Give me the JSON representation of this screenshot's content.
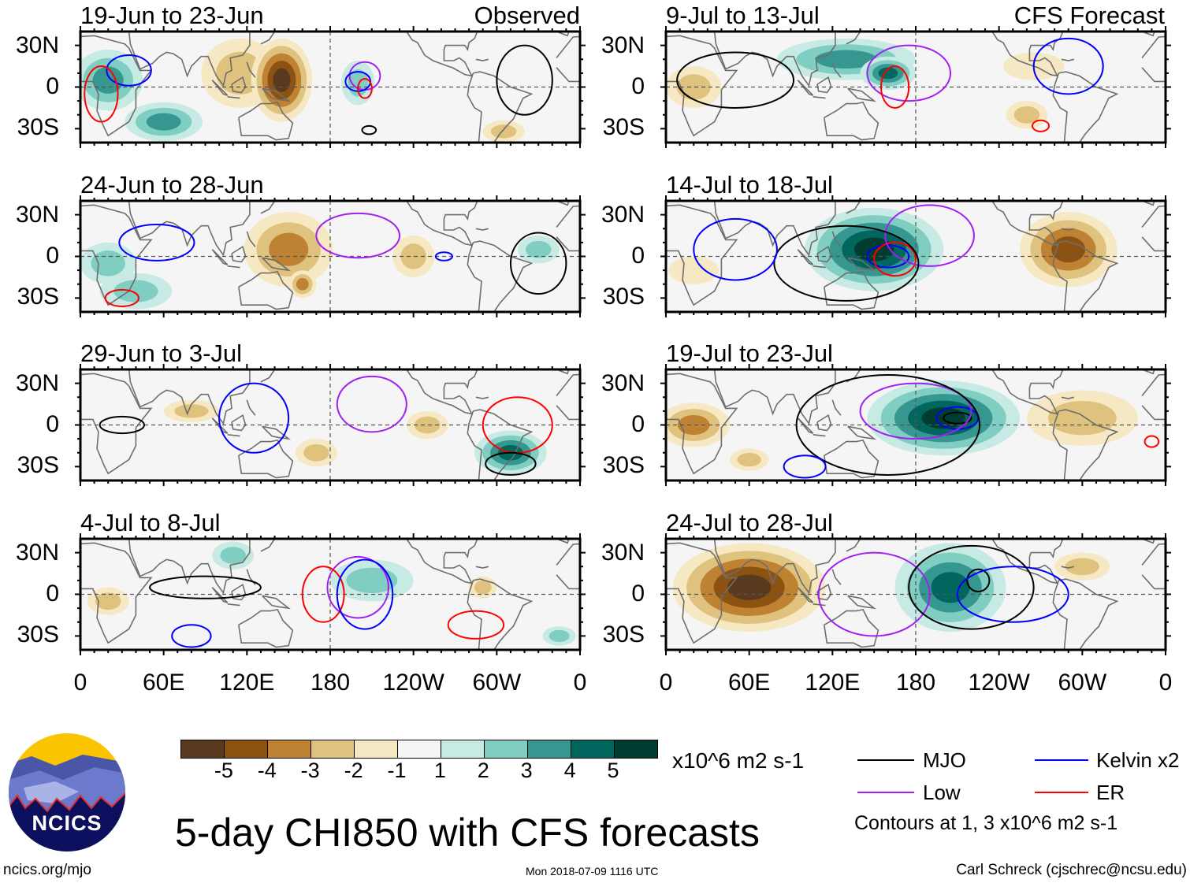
{
  "title": "5-day CHI850 with CFS forecasts",
  "units": "x10^6 m2 s-1",
  "observed_label": "Observed",
  "forecast_label": "CFS Forecast",
  "lat_labels": [
    "30N",
    "0",
    "30S"
  ],
  "lon_labels": [
    "0",
    "60E",
    "120E",
    "180",
    "120W",
    "60W",
    "0"
  ],
  "colorbar": {
    "labels": [
      "-5",
      "-4",
      "-3",
      "-2",
      "-1",
      "1",
      "2",
      "3",
      "4",
      "5"
    ],
    "colors": [
      "#5a3a1e",
      "#8c5212",
      "#bf8232",
      "#dfc27d",
      "#f6e8c3",
      "#f5f5f5",
      "#c7eae5",
      "#80cdc1",
      "#35978f",
      "#01665e",
      "#003c30"
    ]
  },
  "legend": {
    "items": [
      {
        "label": "MJO",
        "color": "#000000"
      },
      {
        "label": "Kelvin x2",
        "color": "#0000ff"
      },
      {
        "label": "Low",
        "color": "#a020f0"
      },
      {
        "label": "ER",
        "color": "#ff0000"
      }
    ],
    "note": "Contours at 1, 3 x10^6 m2 s-1"
  },
  "footer": {
    "site": "ncics.org/mjo",
    "timestamp": "Mon 2018-07-09 1116 UTC",
    "author": "Carl Schreck (cjschrec@ncsu.edu)"
  },
  "logo_text": "NCICS",
  "panels": [
    {
      "title": "19-Jun to 23-Jun",
      "column": "observed",
      "anomalies": [
        [
          115,
          10,
          28,
          25,
          -2
        ],
        [
          145,
          5,
          22,
          30,
          -4.5
        ],
        [
          20,
          5,
          25,
          22,
          2.5
        ],
        [
          60,
          -25,
          28,
          14,
          2.5
        ],
        [
          200,
          3,
          12,
          16,
          2
        ],
        [
          305,
          -32,
          15,
          8,
          -2
        ]
      ],
      "contours": [
        [
          "Kelvin",
          35,
          12,
          16,
          11
        ],
        [
          "Low",
          205,
          8,
          11,
          10
        ],
        [
          "Kelvin",
          200,
          4,
          9,
          7
        ],
        [
          "ER",
          205,
          -1,
          5,
          7
        ],
        [
          "MJO",
          320,
          5,
          20,
          25
        ],
        [
          "MJO",
          208,
          -31,
          5,
          3
        ],
        [
          "ER",
          15,
          -5,
          12,
          20
        ]
      ]
    },
    {
      "title": "24-Jun to 28-Jun",
      "column": "observed",
      "anomalies": [
        [
          150,
          5,
          32,
          27,
          -3
        ],
        [
          160,
          -20,
          10,
          10,
          -3
        ],
        [
          240,
          0,
          15,
          15,
          -2
        ],
        [
          40,
          -25,
          26,
          13,
          2
        ],
        [
          20,
          -5,
          20,
          15,
          1.5
        ],
        [
          330,
          5,
          15,
          10,
          1.5
        ]
      ],
      "contours": [
        [
          "Kelvin",
          55,
          10,
          27,
          13
        ],
        [
          "Low",
          200,
          15,
          30,
          16
        ],
        [
          "MJO",
          330,
          -5,
          20,
          22
        ],
        [
          "ER",
          30,
          -30,
          12,
          6
        ],
        [
          "Kelvin",
          262,
          0,
          6,
          3
        ]
      ]
    },
    {
      "title": "29-Jun to 3-Jul",
      "column": "observed",
      "anomalies": [
        [
          310,
          -20,
          26,
          16,
          3.5
        ],
        [
          170,
          -20,
          15,
          10,
          -2
        ],
        [
          250,
          0,
          15,
          10,
          -1.5
        ],
        [
          80,
          10,
          20,
          8,
          -1.2
        ]
      ],
      "contours": [
        [
          "Low",
          210,
          15,
          25,
          20
        ],
        [
          "Kelvin",
          125,
          5,
          25,
          25
        ],
        [
          "ER",
          315,
          0,
          25,
          20
        ],
        [
          "MJO",
          30,
          0,
          16,
          6
        ],
        [
          "MJO",
          310,
          -28,
          18,
          8
        ]
      ]
    },
    {
      "title": "4-Jul to 8-Jul",
      "column": "observed",
      "anomalies": [
        [
          210,
          10,
          30,
          15,
          1.5
        ],
        [
          110,
          28,
          15,
          10,
          1.5
        ],
        [
          290,
          5,
          10,
          8,
          -2
        ],
        [
          20,
          -5,
          15,
          10,
          -1.5
        ],
        [
          345,
          -30,
          12,
          7,
          1.2
        ]
      ],
      "contours": [
        [
          "Low",
          200,
          5,
          22,
          22
        ],
        [
          "ER",
          175,
          0,
          15,
          20
        ],
        [
          "Kelvin",
          205,
          0,
          20,
          25
        ],
        [
          "MJO",
          90,
          5,
          40,
          8
        ],
        [
          "Kelvin",
          80,
          -30,
          14,
          8
        ],
        [
          "ER",
          285,
          -22,
          20,
          10
        ]
      ]
    },
    {
      "title": "9-Jul to 13-Jul",
      "column": "forecast",
      "anomalies": [
        [
          130,
          20,
          50,
          15,
          2.5
        ],
        [
          160,
          10,
          20,
          12,
          3.5
        ],
        [
          20,
          0,
          20,
          15,
          -1.5
        ],
        [
          260,
          -20,
          15,
          10,
          -1.5
        ],
        [
          265,
          15,
          22,
          10,
          -1
        ]
      ],
      "contours": [
        [
          "Low",
          175,
          10,
          30,
          20
        ],
        [
          "ER",
          165,
          0,
          10,
          15
        ],
        [
          "MJO",
          50,
          5,
          42,
          20
        ],
        [
          "Kelvin",
          290,
          15,
          25,
          20
        ],
        [
          "ER",
          270,
          -28,
          6,
          4
        ]
      ]
    },
    {
      "title": "14-Jul to 18-Jul",
      "column": "forecast",
      "anomalies": [
        [
          150,
          5,
          50,
          30,
          4.5
        ],
        [
          290,
          5,
          35,
          27,
          -4
        ],
        [
          20,
          -10,
          18,
          10,
          -1
        ]
      ],
      "contours": [
        [
          "Kelvin",
          160,
          0,
          15,
          8
        ],
        [
          "ER",
          165,
          -2,
          15,
          12
        ],
        [
          "Low",
          190,
          15,
          32,
          22
        ],
        [
          "MJO",
          130,
          -5,
          52,
          27
        ],
        [
          "Kelvin",
          50,
          5,
          30,
          22
        ]
      ]
    },
    {
      "title": "19-Jul to 23-Jul",
      "column": "forecast",
      "anomalies": [
        [
          200,
          5,
          55,
          27,
          5
        ],
        [
          20,
          0,
          26,
          16,
          -2.5
        ],
        [
          300,
          5,
          40,
          20,
          -2
        ],
        [
          60,
          -25,
          14,
          8,
          -2
        ]
      ],
      "contours": [
        [
          "Kelvin",
          210,
          5,
          15,
          8
        ],
        [
          "MJO",
          210,
          5,
          10,
          4
        ],
        [
          "Low",
          180,
          10,
          40,
          20
        ],
        [
          "MJO",
          160,
          0,
          66,
          36
        ],
        [
          "ER",
          350,
          -12,
          5,
          4
        ],
        [
          "Kelvin",
          100,
          -30,
          15,
          8
        ]
      ]
    },
    {
      "title": "24-Jul to 28-Jul",
      "column": "forecast",
      "anomalies": [
        [
          60,
          5,
          55,
          32,
          -4.5
        ],
        [
          205,
          5,
          40,
          32,
          4
        ],
        [
          300,
          20,
          20,
          10,
          -1.5
        ]
      ],
      "contours": [
        [
          "MJO",
          225,
          10,
          8,
          8
        ],
        [
          "Kelvin",
          250,
          0,
          40,
          20
        ],
        [
          "Low",
          150,
          0,
          40,
          30
        ],
        [
          "MJO",
          220,
          5,
          45,
          30
        ]
      ]
    }
  ]
}
